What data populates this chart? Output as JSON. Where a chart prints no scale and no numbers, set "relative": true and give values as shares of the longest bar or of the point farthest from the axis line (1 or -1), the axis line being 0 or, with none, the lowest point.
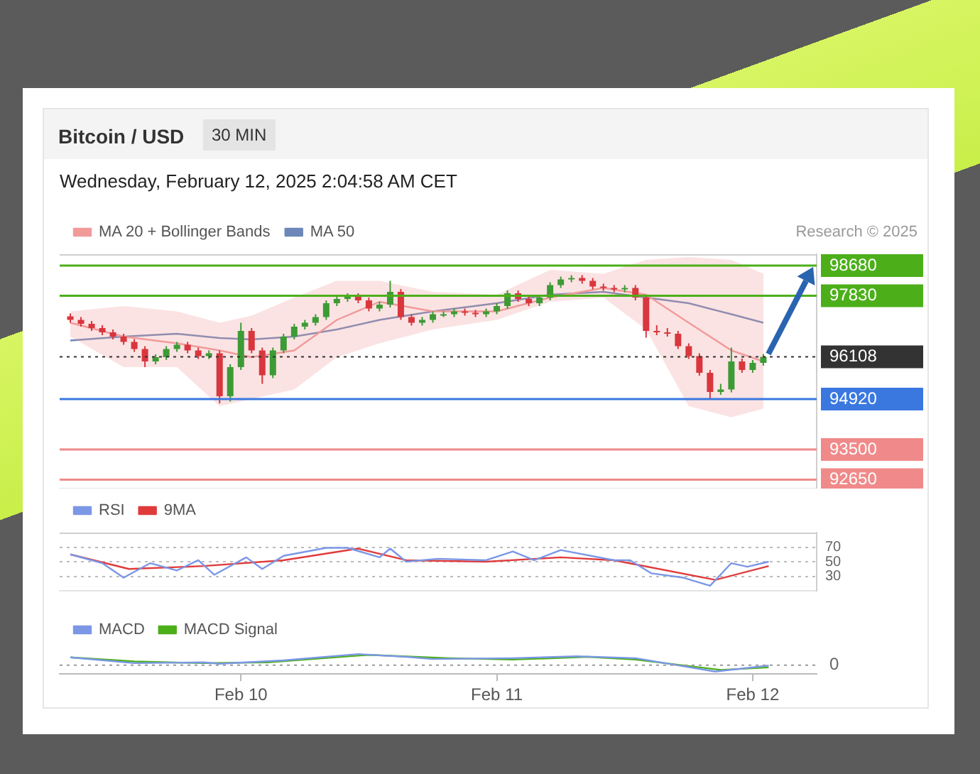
{
  "chart_data": [
    {
      "type": "candlestick",
      "title": "Bitcoin / USD",
      "subtitle": "30 MIN",
      "annotations": [
        "Wednesday, February 12, 2025 2:04:58 AM CET",
        "Research © 2025"
      ],
      "x": [
        "2025-02-09T08:00",
        "2025-02-09T09:00",
        "2025-02-09T10:00",
        "2025-02-09T11:00",
        "2025-02-09T12:00",
        "2025-02-09T13:00",
        "2025-02-09T14:00",
        "2025-02-09T15:00",
        "2025-02-09T16:00",
        "2025-02-09T17:00",
        "2025-02-09T18:00",
        "2025-02-09T19:00",
        "2025-02-09T20:00",
        "2025-02-09T21:00",
        "2025-02-09T22:00",
        "2025-02-09T23:00",
        "2025-02-10T00:00",
        "2025-02-10T01:00",
        "2025-02-10T02:00",
        "2025-02-10T03:00",
        "2025-02-10T04:00",
        "2025-02-10T05:00",
        "2025-02-10T06:00",
        "2025-02-10T07:00",
        "2025-02-10T08:00",
        "2025-02-10T09:00",
        "2025-02-10T10:00",
        "2025-02-10T11:00",
        "2025-02-10T12:00",
        "2025-02-10T13:00",
        "2025-02-10T14:00",
        "2025-02-10T15:00",
        "2025-02-10T16:00",
        "2025-02-10T17:00",
        "2025-02-10T18:00",
        "2025-02-10T19:00",
        "2025-02-10T20:00",
        "2025-02-10T21:00",
        "2025-02-10T22:00",
        "2025-02-10T23:00",
        "2025-02-11T00:00",
        "2025-02-11T01:00",
        "2025-02-11T02:00",
        "2025-02-11T03:00",
        "2025-02-11T04:00",
        "2025-02-11T05:00",
        "2025-02-11T06:00",
        "2025-02-11T07:00",
        "2025-02-11T08:00",
        "2025-02-11T09:00",
        "2025-02-11T10:00",
        "2025-02-11T11:00",
        "2025-02-11T12:00",
        "2025-02-11T13:00",
        "2025-02-11T14:00",
        "2025-02-11T15:00",
        "2025-02-11T16:00",
        "2025-02-11T17:00",
        "2025-02-11T18:00",
        "2025-02-11T19:00",
        "2025-02-11T20:00",
        "2025-02-11T21:00",
        "2025-02-11T22:00",
        "2025-02-11T23:00",
        "2025-02-12T00:00",
        "2025-02-12T01:00"
      ],
      "ohlc": [
        [
          97250,
          97330,
          97070,
          97150
        ],
        [
          97150,
          97230,
          96960,
          97040
        ],
        [
          97040,
          97120,
          96840,
          96920
        ],
        [
          96920,
          97000,
          96720,
          96800
        ],
        [
          96800,
          96880,
          96600,
          96680
        ],
        [
          96680,
          96760,
          96450,
          96530
        ],
        [
          96530,
          96610,
          96250,
          96330
        ],
        [
          96330,
          96410,
          95820,
          95980
        ],
        [
          95980,
          96180,
          95900,
          96100
        ],
        [
          96100,
          96410,
          96020,
          96330
        ],
        [
          96330,
          96530,
          96250,
          96450
        ],
        [
          96450,
          96530,
          96210,
          96290
        ],
        [
          96290,
          96370,
          96050,
          96130
        ],
        [
          96130,
          96290,
          96050,
          96210
        ],
        [
          96210,
          96290,
          94800,
          95000
        ],
        [
          95000,
          95900,
          94850,
          95820
        ],
        [
          95820,
          97070,
          95740,
          96840
        ],
        [
          96840,
          96920,
          96210,
          96290
        ],
        [
          96290,
          96370,
          95350,
          95590
        ],
        [
          95590,
          96370,
          95510,
          96290
        ],
        [
          96290,
          96760,
          96210,
          96680
        ],
        [
          96680,
          97040,
          96600,
          96960
        ],
        [
          96960,
          97150,
          96880,
          97070
        ],
        [
          97070,
          97310,
          96990,
          97230
        ],
        [
          97230,
          97700,
          97150,
          97620
        ],
        [
          97620,
          97820,
          97540,
          97740
        ],
        [
          97740,
          97900,
          97660,
          97820
        ],
        [
          97820,
          97900,
          97620,
          97700
        ],
        [
          97700,
          97780,
          97390,
          97470
        ],
        [
          97470,
          97660,
          97390,
          97580
        ],
        [
          97580,
          98250,
          97500,
          97940
        ],
        [
          97940,
          98020,
          97150,
          97230
        ],
        [
          97230,
          97310,
          96990,
          97070
        ],
        [
          97070,
          97230,
          96990,
          97150
        ],
        [
          97150,
          97390,
          97070,
          97310
        ],
        [
          97310,
          97390,
          97230,
          97310
        ],
        [
          97310,
          97470,
          97230,
          97390
        ],
        [
          97390,
          97470,
          97270,
          97350
        ],
        [
          97350,
          97430,
          97230,
          97310
        ],
        [
          97310,
          97470,
          97230,
          97390
        ],
        [
          97390,
          97620,
          97310,
          97540
        ],
        [
          97540,
          97980,
          97460,
          97900
        ],
        [
          97900,
          97980,
          97660,
          97740
        ],
        [
          97740,
          97820,
          97540,
          97620
        ],
        [
          97620,
          97860,
          97540,
          97780
        ],
        [
          97780,
          98210,
          97700,
          98130
        ],
        [
          98130,
          98370,
          98050,
          98290
        ],
        [
          98290,
          98410,
          98210,
          98330
        ],
        [
          98330,
          98410,
          98170,
          98250
        ],
        [
          98250,
          98330,
          98010,
          98090
        ],
        [
          98090,
          98170,
          97970,
          98050
        ],
        [
          98050,
          98130,
          97930,
          98010
        ],
        [
          98010,
          98130,
          97930,
          98050
        ],
        [
          98050,
          98130,
          97700,
          97780
        ],
        [
          97780,
          97860,
          96650,
          96840
        ],
        [
          96840,
          97000,
          96720,
          96800
        ],
        [
          96800,
          96920,
          96680,
          96760
        ],
        [
          96760,
          96840,
          96330,
          96410
        ],
        [
          96410,
          96490,
          96050,
          96130
        ],
        [
          96130,
          96210,
          95580,
          95660
        ],
        [
          95660,
          95740,
          94920,
          95120
        ],
        [
          95120,
          95350,
          95040,
          95190
        ],
        [
          95190,
          96370,
          95110,
          95980
        ],
        [
          95980,
          96060,
          95660,
          95740
        ],
        [
          95740,
          96020,
          95660,
          95940
        ],
        [
          95940,
          96190,
          95860,
          96110
        ]
      ],
      "colors": [
        "#d9363e",
        "#d9363e",
        "#d9363e",
        "#d9363e",
        "#d9363e",
        "#d9363e",
        "#d9363e",
        "#d9363e",
        "#3d9b35",
        "#3d9b35",
        "#3d9b35",
        "#d9363e",
        "#d9363e",
        "#3d9b35",
        "#d9363e",
        "#3d9b35",
        "#3d9b35",
        "#d9363e",
        "#d9363e",
        "#3d9b35",
        "#3d9b35",
        "#3d9b35",
        "#3d9b35",
        "#3d9b35",
        "#3d9b35",
        "#3d9b35",
        "#3d9b35",
        "#d9363e",
        "#d9363e",
        "#3d9b35",
        "#3d9b35",
        "#d9363e",
        "#d9363e",
        "#3d9b35",
        "#3d9b35",
        "#3d9b35",
        "#3d9b35",
        "#d9363e",
        "#d9363e",
        "#3d9b35",
        "#3d9b35",
        "#3d9b35",
        "#d9363e",
        "#d9363e",
        "#3d9b35",
        "#3d9b35",
        "#3d9b35",
        "#3d9b35",
        "#d9363e",
        "#d9363e",
        "#d9363e",
        "#d9363e",
        "#3d9b35",
        "#d9363e",
        "#d9363e",
        "#d9363e",
        "#d9363e",
        "#d9363e",
        "#d9363e",
        "#d9363e",
        "#d9363e",
        "#3d9b35",
        "#3d9b35",
        "#d9363e",
        "#3d9b35",
        "#3d9b35"
      ],
      "series": [
        {
          "name": "MA 20 + Bollinger Bands",
          "type": "line",
          "color": "#f29a9a",
          "x": [
            "2025-02-09T08:00",
            "2025-02-09T13:00",
            "2025-02-09T18:00",
            "2025-02-09T22:00",
            "2025-02-10T01:00",
            "2025-02-10T05:00",
            "2025-02-10T09:00",
            "2025-02-10T13:00",
            "2025-02-10T18:00",
            "2025-02-11T00:00",
            "2025-02-11T05:00",
            "2025-02-11T10:00",
            "2025-02-11T14:00",
            "2025-02-11T18:00",
            "2025-02-11T22:00",
            "2025-02-12T01:00"
          ],
          "values": [
            97070,
            96680,
            96490,
            96290,
            96100,
            96290,
            97150,
            97660,
            97390,
            97390,
            97780,
            98050,
            97860,
            97070,
            96290,
            95980
          ],
          "lower": [
            96680,
            95820,
            95820,
            94720,
            94920,
            95190,
            96100,
            96490,
            96880,
            97150,
            97660,
            97780,
            96880,
            94720,
            94410,
            94650
          ],
          "upper": [
            97390,
            97540,
            97390,
            97070,
            97270,
            97780,
            98250,
            98250,
            97940,
            97860,
            98560,
            98450,
            98840,
            98920,
            98840,
            98450
          ]
        },
        {
          "name": "MA 50",
          "type": "line",
          "color": "#6d88b8",
          "x": [
            "2025-02-09T08:00",
            "2025-02-09T13:00",
            "2025-02-09T18:00",
            "2025-02-09T22:00",
            "2025-02-10T01:00",
            "2025-02-10T05:00",
            "2025-02-10T09:00",
            "2025-02-10T13:00",
            "2025-02-10T18:00",
            "2025-02-11T00:00",
            "2025-02-11T05:00",
            "2025-02-11T10:00",
            "2025-02-11T14:00",
            "2025-02-11T18:00",
            "2025-02-11T22:00",
            "2025-02-12T01:00"
          ],
          "values": [
            96570,
            96680,
            96760,
            96640,
            96600,
            96680,
            96880,
            97150,
            97390,
            97620,
            97860,
            97940,
            97780,
            97620,
            97310,
            97070
          ]
        }
      ],
      "xlim": [
        "2025-02-09T07:00",
        "2025-02-12T06:00"
      ],
      "ylim": [
        92400,
        99000
      ],
      "tick_labels": false,
      "legend": "top left",
      "ref_lines": [
        {
          "axis": "y",
          "value": 98680,
          "label": "98680",
          "color": "#4caf1a"
        },
        {
          "axis": "y",
          "value": 97830,
          "label": "97830",
          "color": "#4caf1a"
        },
        {
          "axis": "y",
          "value": 96108,
          "label": "96108",
          "color": "#333333",
          "line_style": "dotted"
        },
        {
          "axis": "y",
          "value": 94920,
          "label": "94920",
          "color": "#3a78e0"
        },
        {
          "axis": "y",
          "value": 93500,
          "label": "93500",
          "color": "#f08a8a"
        },
        {
          "axis": "y",
          "value": 92650,
          "label": "92650",
          "color": "#f08a8a"
        }
      ]
    },
    {
      "type": "line",
      "series": [
        {
          "name": "RSI",
          "color": "#7b97e6",
          "x": [
            "2025-02-09T08:00",
            "2025-02-09T11:00",
            "2025-02-09T13:00",
            "2025-02-09T15:30",
            "2025-02-09T18:00",
            "2025-02-09T20:00",
            "2025-02-09T21:30",
            "2025-02-10T00:30",
            "2025-02-10T02:00",
            "2025-02-10T04:00",
            "2025-02-10T08:00",
            "2025-02-10T10:00",
            "2025-02-10T13:00",
            "2025-02-10T14:00",
            "2025-02-10T15:30",
            "2025-02-10T18:30",
            "2025-02-10T23:00",
            "2025-02-11T01:30",
            "2025-02-11T03:30",
            "2025-02-11T06:00",
            "2025-02-11T11:00",
            "2025-02-11T12:30",
            "2025-02-11T14:30",
            "2025-02-11T17:30",
            "2025-02-11T20:00",
            "2025-02-11T22:00",
            "2025-02-11T23:30",
            "2025-02-12T01:30"
          ],
          "values": [
            60,
            48,
            28,
            48,
            38,
            52,
            32,
            56,
            40,
            58,
            69,
            69,
            56,
            68,
            50,
            54,
            52,
            64,
            52,
            66,
            52,
            52,
            34,
            28,
            17,
            48,
            43,
            50
          ]
        },
        {
          "name": "9MA",
          "color": "#e03b3b",
          "x": [
            "2025-02-09T08:00",
            "2025-02-09T13:30",
            "2025-02-09T20:30",
            "2025-02-10T04:00",
            "2025-02-10T11:00",
            "2025-02-10T15:30",
            "2025-02-10T23:00",
            "2025-02-11T06:00",
            "2025-02-11T11:00",
            "2025-02-11T20:30",
            "2025-02-12T01:30"
          ],
          "values": [
            60,
            40,
            44,
            52,
            68,
            52,
            50,
            56,
            52,
            25,
            44
          ]
        }
      ],
      "xlim": [
        "2025-02-09T07:00",
        "2025-02-12T06:00"
      ],
      "ylim": [
        10,
        90
      ],
      "yticks": [
        70,
        50,
        30
      ],
      "grid": "y",
      "tick_labels": "y",
      "legend": "top left"
    },
    {
      "type": "line",
      "relative": true,
      "series": [
        {
          "name": "MACD",
          "color": "#7b97e6",
          "x": [
            "2025-02-09T08:00",
            "2025-02-09T14:00",
            "2025-02-09T20:30",
            "2025-02-09T22:00",
            "2025-02-10T04:00",
            "2025-02-10T11:00",
            "2025-02-10T15:30",
            "2025-02-10T18:00",
            "2025-02-11T01:30",
            "2025-02-11T07:30",
            "2025-02-11T13:00",
            "2025-02-11T20:30",
            "2025-02-12T01:30"
          ],
          "values": [
            0.7,
            0.18,
            0.25,
            0.13,
            0.43,
            1,
            0.75,
            0.55,
            0.63,
            0.8,
            0.63,
            -0.58,
            -0.03
          ]
        },
        {
          "name": "MACD Signal",
          "color": "#4caf1a",
          "x": [
            "2025-02-09T08:00",
            "2025-02-09T14:00",
            "2025-02-09T20:30",
            "2025-02-10T02:30",
            "2025-02-10T12:00",
            "2025-02-10T19:30",
            "2025-02-11T01:30",
            "2025-02-11T08:30",
            "2025-02-11T13:00",
            "2025-02-11T21:00",
            "2025-02-12T01:30"
          ],
          "values": [
            0.7,
            0.33,
            0.18,
            0.25,
            0.93,
            0.63,
            0.5,
            0.75,
            0.5,
            -0.43,
            -0.2
          ]
        }
      ],
      "xlim": [
        "2025-02-09T07:00",
        "2025-02-12T06:00"
      ],
      "xticks": [
        {
          "value": "2025-02-10",
          "label": "Feb 10"
        },
        {
          "value": "2025-02-11",
          "label": "Feb 11"
        },
        {
          "value": "2025-02-12",
          "label": "Feb 12"
        }
      ],
      "tick_labels": "x",
      "legend": "top left",
      "ref_lines": [
        {
          "axis": "y",
          "value": 0,
          "label": "0",
          "line_style": "dotted"
        }
      ]
    }
  ]
}
